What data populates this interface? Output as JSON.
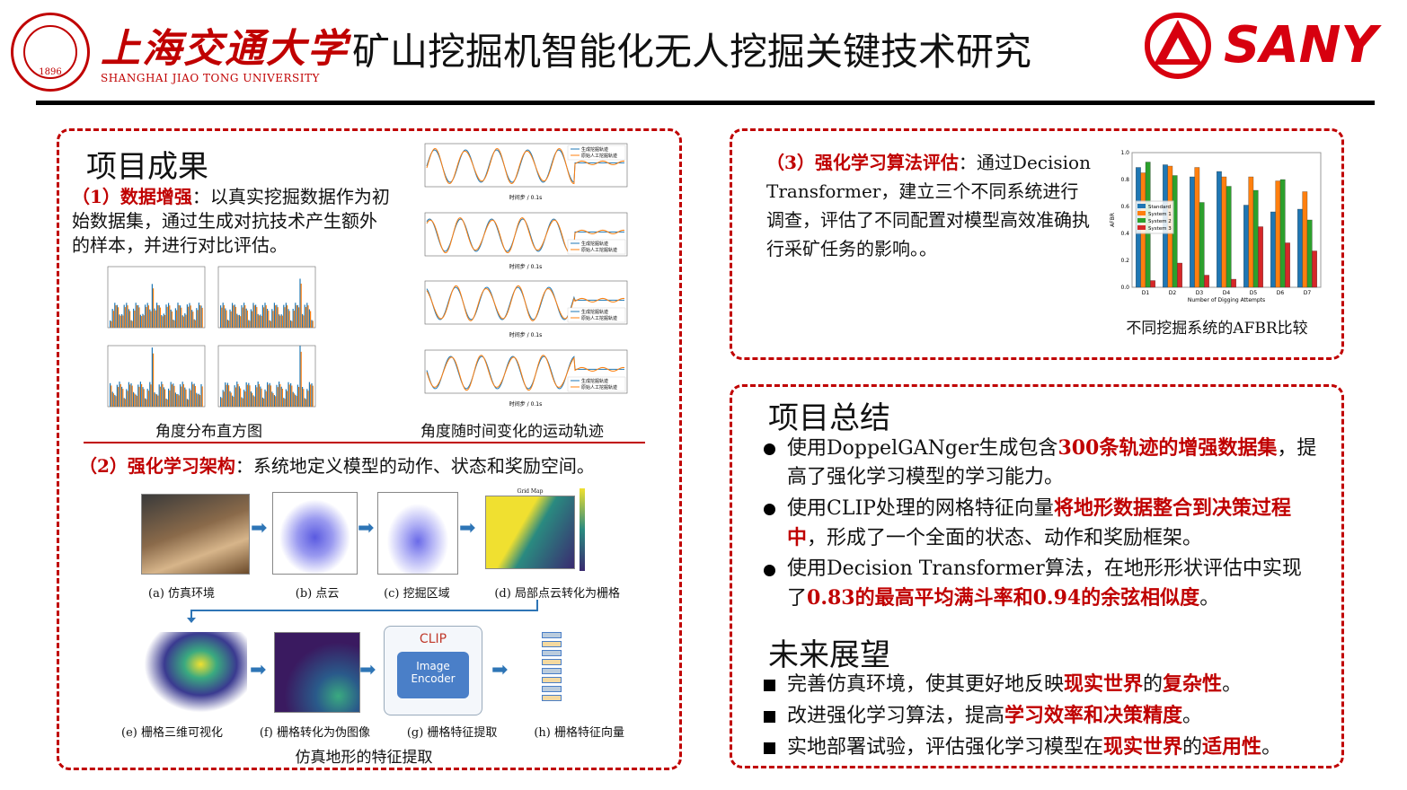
{
  "header": {
    "sjtu_cn": "上海交通大学",
    "sjtu_en": "SHANGHAI JIAO TONG UNIVERSITY",
    "seal_year": "1896",
    "title": "矿山挖掘机智能化无人挖掘关键技术研究",
    "sany": "SANY"
  },
  "left": {
    "title": "项目成果",
    "p1_label": "（1）数据增强",
    "p1_text": "：以真实挖掘数据作为初始数据集，通过生成对抗技术产生额外的样本，并进行对比评估。",
    "hist_caption": "角度分布直方图",
    "traj_caption": "角度随时间变化的运动轨迹",
    "traj_legend": [
      "生成挖掘轨迹",
      "原始人工挖掘轨迹"
    ],
    "traj_xlabel": "时间步 / 0.1s",
    "p2_label": "（2）强化学习架构",
    "p2_text": "：系统地定义模型的动作、状态和奖励空间。",
    "steps": [
      "(a) 仿真环境",
      "(b) 点云",
      "(c) 挖掘区域",
      "(d) 局部点云转化为栅格",
      "(e) 栅格三维可视化",
      "(f) 栅格转化为伪图像",
      "(g) 栅格特征提取",
      "(h) 栅格特征向量"
    ],
    "grid_map_title": "Grid Map",
    "clip_label": "CLIP",
    "encoder_label": "Image Encoder",
    "feature_caption": "仿真地形的特征提取"
  },
  "right_top": {
    "p3_label": "（3）强化学习算法评估",
    "p3_text": "：通过Decision Transformer，建立三个不同系统进行调查，评估了不同配置对模型高效准确执行采矿任务的影响。。",
    "chart_caption": "不同挖掘系统的AFBR比较"
  },
  "chart_data": {
    "type": "bar",
    "categories": [
      "D1",
      "D2",
      "D3",
      "D4",
      "D5",
      "D6",
      "D7"
    ],
    "series": [
      {
        "name": "Standard",
        "values": [
          0.89,
          0.91,
          0.82,
          0.86,
          0.61,
          0.56,
          0.58
        ],
        "color": "#1f77b4"
      },
      {
        "name": "System 1",
        "values": [
          0.85,
          0.9,
          0.89,
          0.82,
          0.82,
          0.79,
          0.71
        ],
        "color": "#ff7f0e"
      },
      {
        "name": "System 2",
        "values": [
          0.93,
          0.83,
          0.63,
          0.75,
          0.72,
          0.8,
          0.5
        ],
        "color": "#2ca02c"
      },
      {
        "name": "System 3",
        "values": [
          0.05,
          0.18,
          0.09,
          0.06,
          0.45,
          0.33,
          0.27
        ],
        "color": "#d62728"
      }
    ],
    "xlabel": "Number of Digging Attempts",
    "ylabel": "AFBR",
    "ylim": [
      0,
      1.0
    ],
    "yticks": [
      "0.0",
      "0.2",
      "0.4",
      "0.6",
      "0.8",
      "1.0"
    ],
    "legend": "center-left"
  },
  "right_bottom": {
    "summary_title": "项目总结",
    "summary": [
      [
        {
          "t": "使用DoppelGANger生成包含"
        },
        {
          "t": "300条轨迹的增强数据集",
          "r": 1
        },
        {
          "t": "，提高了强化学习模型的学习能力。"
        }
      ],
      [
        {
          "t": "使用CLIP处理的网格特征向量"
        },
        {
          "t": "将地形数据整合到决策过程中",
          "r": 1
        },
        {
          "t": "，形成了一个全面的状态、动作和奖励框架。"
        }
      ],
      [
        {
          "t": "使用Decision Transformer算法，在地形形状评估中实现了"
        },
        {
          "t": "0.83的最高平均满斗率和0.94的余弦相似度",
          "r": 1
        },
        {
          "t": "。"
        }
      ]
    ],
    "future_title": "未来展望",
    "future": [
      [
        {
          "t": "完善仿真环境，使其更好地反映"
        },
        {
          "t": "现实世界",
          "r": 1
        },
        {
          "t": "的"
        },
        {
          "t": "复杂性",
          "r": 1
        },
        {
          "t": "。"
        }
      ],
      [
        {
          "t": "改进强化学习算法，提高"
        },
        {
          "t": "学习效率和决策精度",
          "r": 1
        },
        {
          "t": "。"
        }
      ],
      [
        {
          "t": "实地部署试验，评估强化学习模型在"
        },
        {
          "t": "现实世界",
          "r": 1
        },
        {
          "t": "的"
        },
        {
          "t": "适用性",
          "r": 1
        },
        {
          "t": "。"
        }
      ]
    ]
  },
  "colors": {
    "accent": "#c00000",
    "arrow": "#2e75b6"
  }
}
